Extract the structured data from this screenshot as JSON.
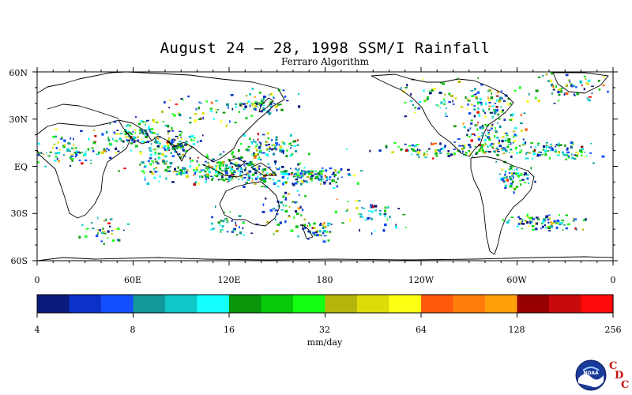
{
  "title": "August 24 – 28, 1998 SSM/I Rainfall",
  "subtitle": "Ferraro Algorithm",
  "lat_labels": [
    "60N",
    "30N",
    "EQ",
    "30S",
    "60S"
  ],
  "lon_labels": [
    "0",
    "60E",
    "120E",
    "180",
    "120W",
    "60W",
    "0"
  ],
  "colorbar": {
    "unit_label": "mm/day",
    "tick_labels": [
      "4",
      "8",
      "16",
      "32",
      "64",
      "128",
      "256"
    ],
    "colors": [
      "#0a1a7a",
      "#0a32c8",
      "#1450ff",
      "#129898",
      "#10c8c8",
      "#14ffff",
      "#0a960a",
      "#0ac80a",
      "#14ff14",
      "#b4b40a",
      "#dcdc0a",
      "#ffff14",
      "#ff5a0a",
      "#ff7d0a",
      "#ffa00a",
      "#960000",
      "#c80a0a",
      "#ff0a0a"
    ]
  },
  "logo": {
    "label": "NOAA",
    "icon": "noaa-logo-icon",
    "credit": [
      "C",
      "D",
      "C"
    ]
  }
}
